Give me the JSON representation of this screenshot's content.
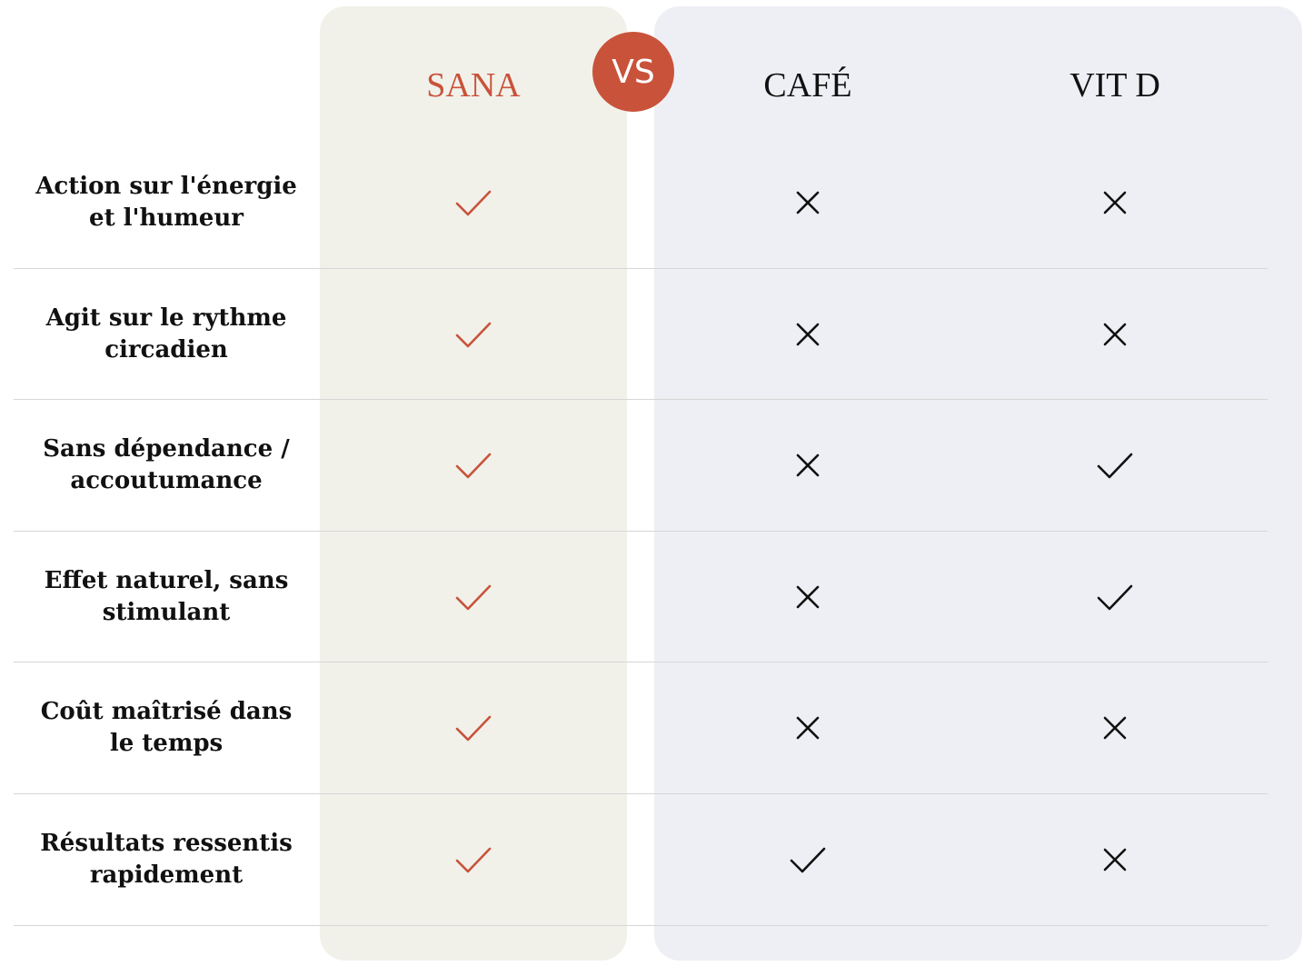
{
  "badge": {
    "label": "VS"
  },
  "columns": [
    {
      "key": "sana",
      "label": "SANA",
      "color": "#c8533a"
    },
    {
      "key": "cafe",
      "label": "CAFÉ",
      "color": "#111111"
    },
    {
      "key": "vitd",
      "label": "VIT D",
      "color": "#111111"
    }
  ],
  "rows": [
    {
      "label": "Action sur l'énergie et l'humeur",
      "sana": "check",
      "cafe": "cross",
      "vitd": "cross"
    },
    {
      "label": "Agit sur le rythme circadien",
      "sana": "check",
      "cafe": "cross",
      "vitd": "cross"
    },
    {
      "label": "Sans dépendance / accoutumance",
      "sana": "check",
      "cafe": "cross",
      "vitd": "check"
    },
    {
      "label": "Effet naturel, sans stimulant",
      "sana": "check",
      "cafe": "cross",
      "vitd": "check"
    },
    {
      "label": "Coût maîtrisé dans le temps",
      "sana": "check",
      "cafe": "cross",
      "vitd": "cross"
    },
    {
      "label": "Résultats ressentis rapidement",
      "sana": "check",
      "cafe": "check",
      "vitd": "cross"
    }
  ],
  "colors": {
    "accent": "#c8533a",
    "sana_panel": "#f1f1ea",
    "others_panel": "#eeeff4",
    "divider": "#d6d6d6",
    "text": "#111111"
  }
}
